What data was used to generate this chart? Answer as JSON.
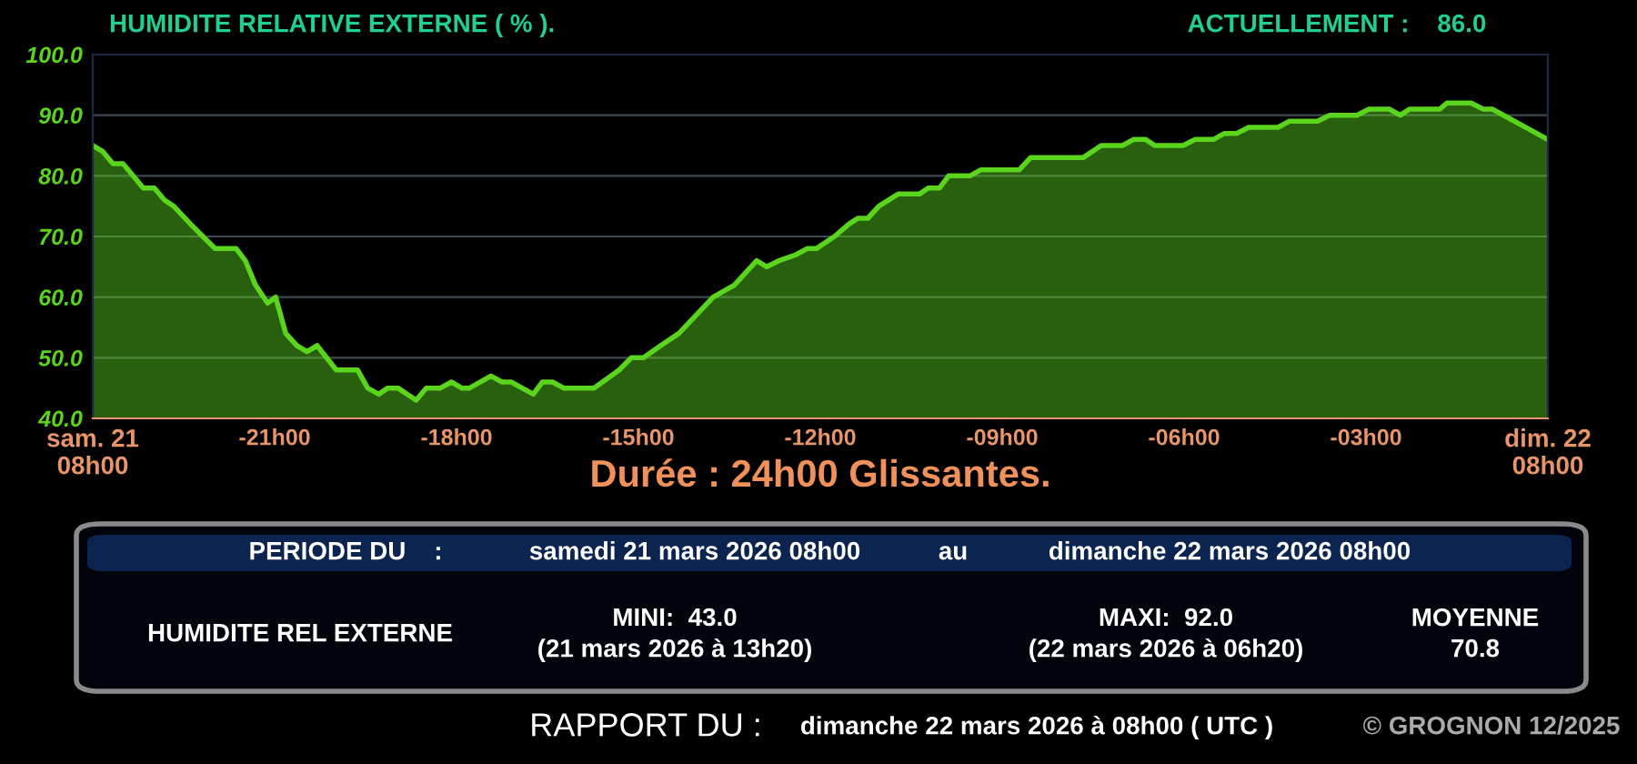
{
  "chart_data": {
    "type": "area",
    "title": "HUMIDITE RELATIVE EXTERNE ( % ).",
    "xlabel": "Durée : 24h00 Glissantes.",
    "x": [
      "2026-03-21T08:00",
      "2026-03-21T08:10",
      "2026-03-21T08:20",
      "2026-03-21T08:30",
      "2026-03-21T08:50",
      "2026-03-21T09:01",
      "2026-03-21T09:11",
      "2026-03-21T09:20",
      "2026-03-21T09:37",
      "2026-03-21T09:49",
      "2026-03-21T10:01",
      "2026-03-21T10:22",
      "2026-03-21T10:31",
      "2026-03-21T10:41",
      "2026-03-21T10:53",
      "2026-03-21T11:01",
      "2026-03-21T11:11",
      "2026-03-21T11:22",
      "2026-03-21T11:32",
      "2026-03-21T11:42",
      "2026-03-21T12:01",
      "2026-03-21T12:22",
      "2026-03-21T12:32",
      "2026-03-21T12:43",
      "2026-03-21T12:52",
      "2026-03-21T13:02",
      "2026-03-21T13:20",
      "2026-03-21T13:30",
      "2026-03-21T13:44",
      "2026-03-21T13:55",
      "2026-03-21T14:05",
      "2026-03-21T14:13",
      "2026-03-21T14:34",
      "2026-03-21T14:45",
      "2026-03-21T14:54",
      "2026-03-21T15:16",
      "2026-03-21T15:25",
      "2026-03-21T15:35",
      "2026-03-21T15:46",
      "2026-03-21T16:16",
      "2026-03-21T16:41",
      "2026-03-21T16:53",
      "2026-03-21T17:05",
      "2026-03-21T17:22",
      "2026-03-21T17:40",
      "2026-03-21T17:57",
      "2026-03-21T18:14",
      "2026-03-21T18:35",
      "2026-03-21T18:57",
      "2026-03-21T19:07",
      "2026-03-21T19:19",
      "2026-03-21T19:36",
      "2026-03-21T19:47",
      "2026-03-21T19:56",
      "2026-03-21T20:14",
      "2026-03-21T20:28",
      "2026-03-21T20:37",
      "2026-03-21T20:47",
      "2026-03-21T20:58",
      "2026-03-21T21:17",
      "2026-03-21T21:38",
      "2026-03-21T21:47",
      "2026-03-21T21:58",
      "2026-03-21T22:07",
      "2026-03-21T22:28",
      "2026-03-21T22:39",
      "2026-03-21T23:17",
      "2026-03-21T23:28",
      "2026-03-22T00:20",
      "2026-03-22T00:38",
      "2026-03-22T00:59",
      "2026-03-22T01:10",
      "2026-03-22T01:22",
      "2026-03-22T01:31",
      "2026-03-22T01:59",
      "2026-03-22T02:11",
      "2026-03-22T02:29",
      "2026-03-22T02:40",
      "2026-03-22T02:52",
      "2026-03-22T03:04",
      "2026-03-22T03:33",
      "2026-03-22T03:44",
      "2026-03-22T04:12",
      "2026-03-22T04:24",
      "2026-03-22T04:51",
      "2026-03-22T05:03",
      "2026-03-22T05:23",
      "2026-03-22T05:34",
      "2026-03-22T05:43",
      "2026-03-22T06:13",
      "2026-03-22T06:20",
      "2026-03-22T06:44",
      "2026-03-22T06:56",
      "2026-03-22T07:05",
      "2026-03-22T08:00"
    ],
    "series": [
      {
        "color": "#5ad41c",
        "values": [
          85,
          84,
          82,
          82,
          78,
          78,
          76,
          75,
          72,
          70,
          68,
          68,
          66,
          62,
          59,
          60,
          54,
          52,
          51,
          52,
          48,
          48,
          45,
          44,
          45,
          45,
          43,
          45,
          45,
          46,
          45,
          45,
          47,
          46,
          46,
          44,
          46,
          46,
          45,
          45,
          48,
          50,
          50,
          52,
          54,
          57,
          60,
          62,
          66,
          65,
          66,
          67,
          68,
          68,
          70,
          72,
          73,
          73,
          75,
          77,
          77,
          78,
          78,
          80,
          80,
          81,
          81,
          83,
          83,
          85,
          85,
          86,
          86,
          85,
          85,
          86,
          86,
          87,
          87,
          88,
          88,
          89,
          89,
          90,
          90,
          91,
          91,
          90,
          91,
          91,
          92,
          92,
          91,
          91,
          86
        ]
      }
    ],
    "xlim": [
      "2026-03-21T08:00",
      "2026-03-22T08:00"
    ],
    "ylim": [
      40,
      100
    ],
    "xticks": [
      {
        "value": "2026-03-21T08:00",
        "label": "sam. 21\n08h00"
      },
      {
        "value": "2026-03-21T11:00",
        "label": "-21h00"
      },
      {
        "value": "2026-03-21T14:00",
        "label": "-18h00"
      },
      {
        "value": "2026-03-21T17:00",
        "label": "-15h00"
      },
      {
        "value": "2026-03-21T20:00",
        "label": "-12h00"
      },
      {
        "value": "2026-03-21T23:00",
        "label": "-09h00"
      },
      {
        "value": "2026-03-22T02:00",
        "label": "-06h00"
      },
      {
        "value": "2026-03-22T05:00",
        "label": "-03h00"
      },
      {
        "value": "2026-03-22T08:00",
        "label": "dim. 22\n08h00"
      }
    ],
    "yticks": [
      {
        "value": 40,
        "label": "40.0"
      },
      {
        "value": 50,
        "label": "50.0"
      },
      {
        "value": 60,
        "label": "60.0"
      },
      {
        "value": 70,
        "label": "70.0"
      },
      {
        "value": 80,
        "label": "80.0"
      },
      {
        "value": 90,
        "label": "90.0"
      },
      {
        "value": 100,
        "label": "100.0"
      }
    ],
    "grid": "y",
    "annotations": [
      "ACTUELLEMENT :    86.0",
      "PERIODE DU    :",
      "samedi 21 mars 2026 08h00",
      "au",
      "dimanche 22 mars 2026 08h00",
      "HUMIDITE REL EXTERNE",
      "MINI:  43.0\n(21 mars 2026 à 13h20)",
      "MAXI:  92.0\n(22 mars 2026 à 06h20)",
      "MOYENNE\n70.8",
      "RAPPORT DU :",
      "dimanche 22 mars 2026 à 08h00 ( UTC )",
      "© GROGNON 12/2025"
    ]
  }
}
